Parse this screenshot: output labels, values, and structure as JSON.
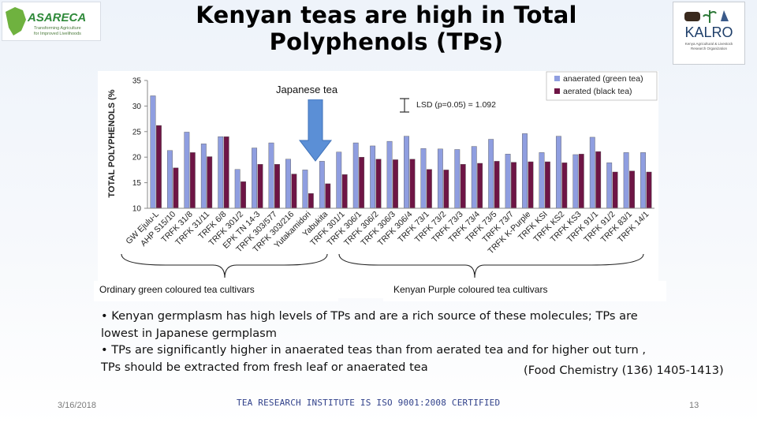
{
  "slide": {
    "title_line1": "Kenyan teas are high in Total",
    "title_line2": "Polyphenols (TPs)",
    "date": "3/16/2018",
    "footer": "TEA RESEARCH INSTITUTE IS ISO 9001:2008 CERTIFIED",
    "page_number": "13"
  },
  "logos": {
    "left_name": "ASARECA",
    "left_tagline1": "Transforming Agriculture",
    "left_tagline2": "for Improved Livelihoods",
    "right_name": "KALRO",
    "right_tagline1": "Kenya Agricultural & Livestock",
    "right_tagline2": "Research Organization"
  },
  "annotations": {
    "japanese_tea": "Japanese tea",
    "group_ordinary": "Ordinary green coloured tea cultivars",
    "group_purple": "Kenyan Purple coloured tea cultivars"
  },
  "bullets": {
    "b1_line1": "• Kenyan germplasm has high levels of TPs and are a rich source of these molecules; TPs are",
    "b1_line2": "lowest in Japanese germplasm",
    "b2_line1": "• TPs are significantly higher in anaerated teas than from aerated tea and  for higher out turn ,",
    "b2_line2": "TPs should be extracted from fresh leaf or anaerated tea",
    "citation": "(Food Chemistry (136) 1405-1413)"
  },
  "colors": {
    "anaerated": "#8f9ee0",
    "aerated": "#6e1545",
    "arrow": "#5b8fd6",
    "footer_text": "#30408a"
  },
  "chart_data": {
    "type": "bar",
    "title": "",
    "xlabel": "",
    "ylabel": "TOTAL POLYPHENOLS (%",
    "ylim": [
      10,
      35
    ],
    "yticks": [
      10,
      15,
      20,
      25,
      30,
      35
    ],
    "legend_position": "top-right",
    "lsd_label": "LSD (p=0.05) = 1.092",
    "lsd_value": 1.092,
    "categories": [
      "GW Ejulu-L",
      "AHP S15/10",
      "TRFK 31/8",
      "TRFK 31/11",
      "TRFK 6/8",
      "TRFK 301/2",
      "EPK TN 14-3",
      "TRFK 303/577",
      "TRFK 303/216",
      "Yutakamidori",
      "Yabukita",
      "TRFK 301/1",
      "TRFK 306/1",
      "TRFK 306/2",
      "TRFK 306/3",
      "TRFK 306/4",
      "TRFK 73/1",
      "TRFK 73/2",
      "TRFK 73/3",
      "TRFK 73/4",
      "TRFK 73/5",
      "TRFK 73/7",
      "TRFK K-Purple",
      "TRFK KSI",
      "TRFK KS2",
      "TRFK KS3",
      "TRFK 91/1",
      "TRFK 91/2",
      "TRFK 83/1",
      "TRFK 14/1"
    ],
    "series": [
      {
        "name": "anaerated (green tea)",
        "values": [
          32,
          21.3,
          24.9,
          22.6,
          24,
          17.6,
          21.8,
          22.8,
          19.6,
          17.5,
          19.2,
          21,
          22.8,
          22.2,
          23.1,
          24.1,
          21.7,
          21.6,
          21.5,
          22.1,
          23.5,
          20.6,
          24.6,
          20.9,
          24.1,
          20.5,
          23.9,
          18.9,
          20.9,
          20.9
        ]
      },
      {
        "name": "aerated (black tea)",
        "values": [
          26.2,
          17.9,
          20.9,
          20.1,
          24,
          15.2,
          18.6,
          18.6,
          16.7,
          12.9,
          14.8,
          16.6,
          20,
          19.6,
          19.5,
          19.6,
          17.6,
          17.5,
          18.6,
          18.8,
          19.2,
          19,
          19.1,
          19.1,
          18.9,
          20.6,
          21.1,
          17.1,
          17.3,
          17.1
        ]
      }
    ]
  }
}
